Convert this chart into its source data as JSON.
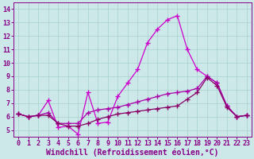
{
  "bg_color": "#cce8e8",
  "line_color_main": "#cc00cc",
  "line_color_mid": "#aa00aa",
  "line_color_flat": "#880066",
  "xlabel": "Windchill (Refroidissement éolien,°C)",
  "xlim": [
    -0.5,
    23.5
  ],
  "ylim": [
    4.5,
    14.5
  ],
  "xticks": [
    0,
    1,
    2,
    3,
    4,
    5,
    6,
    7,
    8,
    9,
    10,
    11,
    12,
    13,
    14,
    15,
    16,
    17,
    18,
    19,
    20,
    21,
    22,
    23
  ],
  "yticks": [
    5,
    6,
    7,
    8,
    9,
    10,
    11,
    12,
    13,
    14
  ],
  "series1_x": [
    0,
    1,
    2,
    3,
    4,
    5,
    6,
    7,
    8,
    9,
    10,
    11,
    12,
    13,
    14,
    15,
    16,
    17,
    18,
    19,
    20,
    21,
    22,
    23
  ],
  "series1_y": [
    6.2,
    6.0,
    6.1,
    7.2,
    5.2,
    5.3,
    4.7,
    7.8,
    5.5,
    5.6,
    7.5,
    8.5,
    9.5,
    11.5,
    12.5,
    13.2,
    13.5,
    11.0,
    9.5,
    9.0,
    8.5,
    6.8,
    6.0,
    6.1
  ],
  "series2_x": [
    0,
    1,
    2,
    3,
    4,
    5,
    6,
    7,
    8,
    9,
    10,
    11,
    12,
    13,
    14,
    15,
    16,
    17,
    18,
    19,
    20,
    21,
    22,
    23
  ],
  "series2_y": [
    6.2,
    6.0,
    6.1,
    6.3,
    5.5,
    5.5,
    5.5,
    6.3,
    6.5,
    6.6,
    6.7,
    6.9,
    7.1,
    7.3,
    7.5,
    7.7,
    7.8,
    7.9,
    8.1,
    9.0,
    8.5,
    6.8,
    6.0,
    6.1
  ],
  "series3_x": [
    0,
    1,
    2,
    3,
    4,
    5,
    6,
    7,
    8,
    9,
    10,
    11,
    12,
    13,
    14,
    15,
    16,
    17,
    18,
    19,
    20,
    21,
    22,
    23
  ],
  "series3_y": [
    6.2,
    6.0,
    6.1,
    6.1,
    5.5,
    5.3,
    5.3,
    5.5,
    5.8,
    6.0,
    6.2,
    6.3,
    6.4,
    6.5,
    6.6,
    6.7,
    6.8,
    7.3,
    7.8,
    8.9,
    8.3,
    6.7,
    6.0,
    6.1
  ],
  "marker": "+",
  "markersize": 4,
  "linewidth": 0.9,
  "tick_fontsize": 6,
  "label_fontsize": 7,
  "grid_color": "#a8d0d0",
  "grid_lw": 0.5,
  "spine_color": "#880088",
  "tick_color": "#880088",
  "label_color": "#880088"
}
